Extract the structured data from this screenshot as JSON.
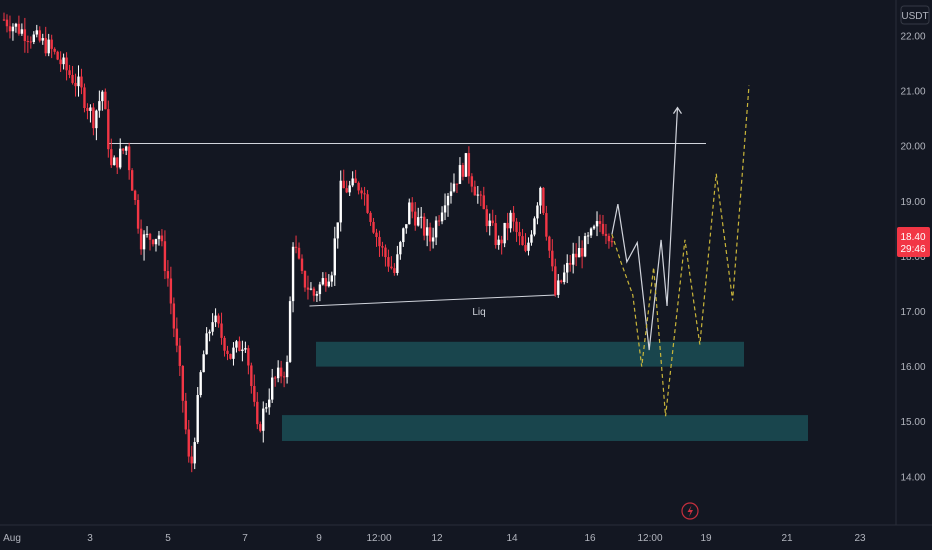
{
  "currency_button": "USDT",
  "current_price_label": "18.40",
  "countdown_label": "29:46",
  "colors": {
    "background": "#131722",
    "up": "#ffffff",
    "down": "#f23645",
    "zone": "#1b4d55",
    "projection_white": "#d1d4dc",
    "projection_yellow": "#c9b53a",
    "price_tag": "#f23645"
  },
  "chart_data": {
    "type": "candlestick",
    "y_ticks": [
      "14.00",
      "15.00",
      "16.00",
      "17.00",
      "18.00",
      "19.00",
      "20.00",
      "21.00",
      "22.00"
    ],
    "x_ticks": [
      "Aug",
      "3",
      "5",
      "7",
      "9",
      "12:00",
      "12",
      "14",
      "16",
      "12:00",
      "19",
      "21",
      "23"
    ],
    "ylim": [
      13.3,
      22.4
    ],
    "grid": false,
    "price_path": [
      [
        0,
        22.3
      ],
      [
        3,
        21.8
      ],
      [
        5,
        21.1
      ],
      [
        6,
        20.5
      ],
      [
        6.6,
        21.0
      ],
      [
        7.2,
        19.6
      ],
      [
        8.2,
        20.0
      ],
      [
        9.2,
        18.3
      ],
      [
        10.4,
        18.4
      ],
      [
        11.0,
        17.6
      ],
      [
        12.0,
        15.4
      ],
      [
        12.5,
        14.0
      ],
      [
        13.3,
        16.1
      ],
      [
        14.0,
        16.9
      ],
      [
        15.2,
        16.2
      ],
      [
        16.2,
        16.5
      ],
      [
        17.0,
        14.8
      ],
      [
        18.0,
        15.7
      ],
      [
        19.0,
        16.0
      ],
      [
        19.4,
        18.3
      ],
      [
        20.0,
        17.6
      ],
      [
        20.8,
        17.3
      ],
      [
        22.0,
        17.8
      ],
      [
        22.6,
        19.2
      ],
      [
        24.0,
        19.3
      ],
      [
        25.2,
        18.2
      ],
      [
        26.2,
        17.7
      ],
      [
        27.2,
        18.9
      ],
      [
        28.6,
        18.3
      ],
      [
        29.6,
        19.1
      ],
      [
        31.0,
        19.7
      ],
      [
        32.2,
        18.8
      ],
      [
        33.2,
        18.2
      ],
      [
        34.0,
        18.7
      ],
      [
        35.0,
        18.0
      ],
      [
        36.0,
        19.3
      ],
      [
        37.0,
        17.3
      ],
      [
        38.0,
        17.9
      ],
      [
        39.0,
        18.2
      ],
      [
        40.0,
        18.6
      ],
      [
        40.8,
        18.4
      ]
    ],
    "resistance_level": 20.05,
    "liquidity": {
      "label": "Liq",
      "from": [
        20.5,
        17.1
      ],
      "to": [
        37.0,
        17.3
      ]
    },
    "demand_zones": [
      {
        "low": 16.0,
        "high": 16.45
      },
      {
        "low": 14.65,
        "high": 15.12
      }
    ],
    "projection_white": [
      [
        40.8,
        18.4
      ],
      [
        41.2,
        18.95
      ],
      [
        41.8,
        17.9
      ],
      [
        42.5,
        18.25
      ],
      [
        43.3,
        16.3
      ],
      [
        44.1,
        18.3
      ],
      [
        44.5,
        17.1
      ],
      [
        45.2,
        20.7
      ]
    ],
    "projection_yellow": [
      [
        40.8,
        18.4
      ],
      [
        41.4,
        17.9
      ],
      [
        42.2,
        17.3
      ],
      [
        42.8,
        16.0
      ],
      [
        43.6,
        17.8
      ],
      [
        44.4,
        15.1
      ],
      [
        45.7,
        18.3
      ],
      [
        46.7,
        16.4
      ],
      [
        47.8,
        19.5
      ],
      [
        48.9,
        17.2
      ],
      [
        50.0,
        21.1
      ]
    ]
  }
}
